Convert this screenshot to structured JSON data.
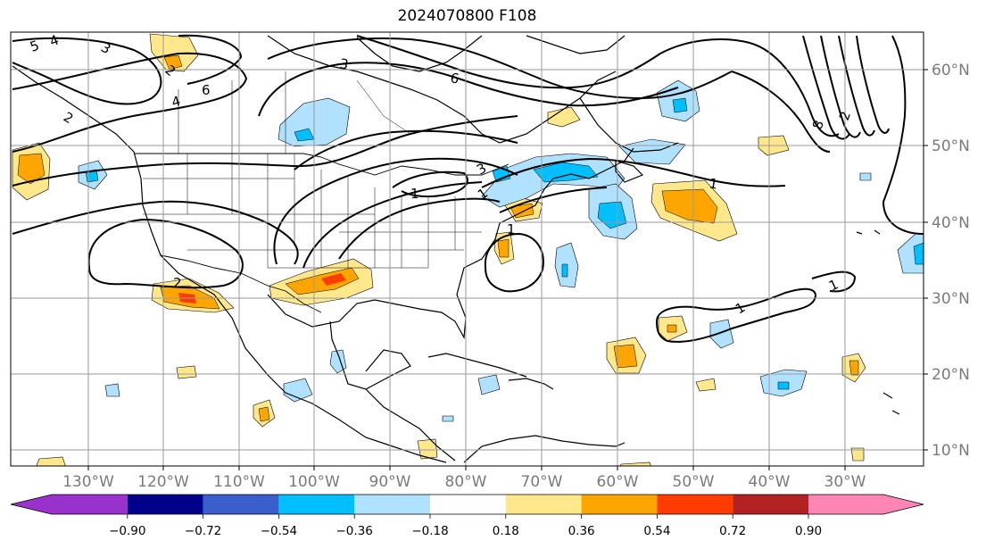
{
  "title": "2024070800 F108",
  "map": {
    "lon_labels": [
      "130°W",
      "120°W",
      "110°W",
      "100°W",
      "90°W",
      "80°W",
      "70°W",
      "60°W",
      "50°W",
      "40°W",
      "30°W"
    ],
    "lat_labels": [
      "60°N",
      "50°N",
      "40°N",
      "30°N",
      "20°N",
      "10°N"
    ]
  },
  "contour_labels": [
    "5",
    "4",
    "3",
    "2",
    "6",
    "4",
    "2",
    "3",
    "6",
    "3",
    "1",
    "1",
    "2",
    "1",
    "1",
    "1",
    "1",
    "8",
    "2"
  ],
  "colorbar": {
    "colors": [
      "#9932cc",
      "#00008b",
      "#3a5fcd",
      "#00bfff",
      "#b0e2ff",
      "#ffffff",
      "#ffe88c",
      "#ffa500",
      "#ff3c00",
      "#b22222",
      "#ff85b5"
    ],
    "tick_labels": [
      "−0.90",
      "−0.72",
      "−0.54",
      "−0.36",
      "−0.18",
      "0.18",
      "0.36",
      "0.54",
      "0.72",
      "0.90"
    ]
  }
}
